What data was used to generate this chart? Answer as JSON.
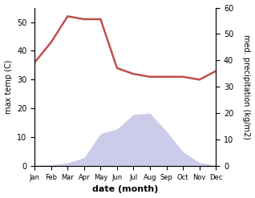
{
  "months": [
    "Jan",
    "Feb",
    "Mar",
    "Apr",
    "May",
    "Jun",
    "Jul",
    "Aug",
    "Sep",
    "Oct",
    "Nov",
    "Dec"
  ],
  "month_indices": [
    0,
    1,
    2,
    3,
    4,
    5,
    6,
    7,
    8,
    9,
    10,
    11
  ],
  "temperature": [
    36,
    43,
    52,
    51,
    51,
    34,
    32,
    31,
    31,
    31,
    30,
    33
  ],
  "precipitation_mm": [
    3,
    5,
    13,
    35,
    135,
    155,
    215,
    220,
    145,
    60,
    15,
    3
  ],
  "temp_color": "#c0504d",
  "precip_fill_color": "#aaaadd",
  "precip_fill_alpha": 0.6,
  "temp_ylim": [
    0,
    55
  ],
  "precip_ylim": [
    0,
    660
  ],
  "temp_yticks": [
    0,
    10,
    20,
    30,
    40,
    50
  ],
  "precip_ytick_vals": [
    0,
    110,
    220,
    330,
    440,
    550,
    660
  ],
  "precip_ytick_labels": [
    "0",
    "10",
    "20",
    "30",
    "40",
    "50",
    "60"
  ],
  "ylabel_left": "max temp (C)",
  "ylabel_right": "med. precipitation (kg/m2)",
  "xlabel": "date (month)",
  "bg_color": "#ffffff"
}
